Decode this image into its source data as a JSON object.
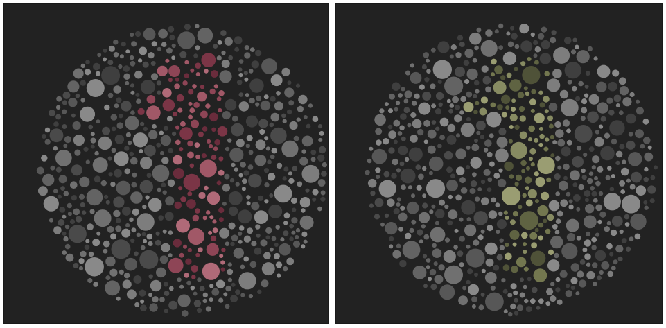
{
  "plates": [
    {
      "id": "left",
      "digit": "1",
      "background_color": "#222222",
      "dot_palette": [
        "#3f3f3f",
        "#4a4a4a",
        "#575757",
        "#636363",
        "#707070",
        "#7d7d7d",
        "#898989"
      ],
      "figure_palette": [
        "#6a2c3c",
        "#7b3546",
        "#8e4556",
        "#a15867",
        "#b06a78"
      ]
    },
    {
      "id": "right",
      "digit": "1",
      "background_color": "#222222",
      "dot_palette": [
        "#3f3f3f",
        "#4a4a4a",
        "#575757",
        "#636363",
        "#707070",
        "#7d7d7d",
        "#898989"
      ],
      "figure_palette": [
        "#4f5238",
        "#5f6342",
        "#73774f",
        "#878b62",
        "#9a9d72"
      ]
    }
  ]
}
